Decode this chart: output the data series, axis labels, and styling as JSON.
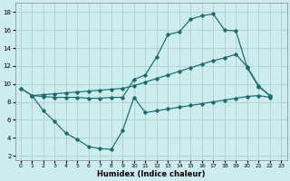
{
  "xlabel": "Humidex (Indice chaleur)",
  "bg_color": "#cceced",
  "grid_color": "#aed4d5",
  "line_color": "#1a6b6b",
  "xlim": [
    -0.5,
    23.5
  ],
  "ylim": [
    1.5,
    19.0
  ],
  "yticks": [
    2,
    4,
    6,
    8,
    10,
    12,
    14,
    16,
    18
  ],
  "xticks": [
    0,
    1,
    2,
    3,
    4,
    5,
    6,
    7,
    8,
    9,
    10,
    11,
    12,
    13,
    14,
    15,
    16,
    17,
    18,
    19,
    20,
    21,
    22,
    23
  ],
  "curve1_x": [
    0,
    1,
    2,
    3,
    4,
    5,
    6,
    7,
    8,
    9,
    10,
    11,
    12,
    13,
    14,
    15,
    16,
    17,
    18,
    19,
    20,
    21,
    22
  ],
  "curve1_y": [
    9.5,
    8.7,
    8.6,
    8.5,
    8.5,
    8.5,
    8.4,
    8.4,
    8.5,
    8.5,
    10.5,
    11.0,
    13.0,
    15.5,
    15.8,
    17.2,
    17.6,
    17.8,
    16.0,
    15.9,
    11.8,
    9.7,
    8.7
  ],
  "curve2_x": [
    0,
    1,
    2,
    3,
    4,
    5,
    6,
    7,
    8,
    9,
    10,
    11,
    12,
    13,
    14,
    15,
    16,
    17,
    18,
    19,
    20,
    21,
    22
  ],
  "curve2_y": [
    9.5,
    8.7,
    8.8,
    8.9,
    9.0,
    9.1,
    9.2,
    9.3,
    9.4,
    9.5,
    9.8,
    10.2,
    10.6,
    11.0,
    11.4,
    11.8,
    12.2,
    12.6,
    12.9,
    13.3,
    11.9,
    9.8,
    8.7
  ],
  "curve3_x": [
    1,
    2,
    3,
    4,
    5,
    6,
    7,
    8,
    9,
    10,
    11,
    12,
    13,
    14,
    15,
    16,
    17,
    18,
    19,
    20,
    21,
    22
  ],
  "curve3_y": [
    8.7,
    7.0,
    5.8,
    4.5,
    3.8,
    3.0,
    2.8,
    2.7,
    4.8,
    8.5,
    6.8,
    7.0,
    7.2,
    7.4,
    7.6,
    7.8,
    8.0,
    8.2,
    8.4,
    8.6,
    8.7,
    8.5
  ]
}
